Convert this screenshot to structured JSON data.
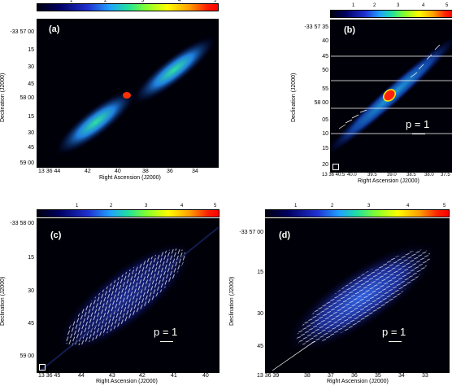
{
  "colorbar_ticks": [
    "1",
    "2",
    "3",
    "4",
    "5"
  ],
  "ylabel": "Declination (J2000)",
  "xlabel": "Right Ascension (J2000)",
  "panels": {
    "a": {
      "label": "(a)",
      "yticks": [
        "-33 57 00",
        "15",
        "30",
        "45",
        "58 00",
        "15",
        "30",
        "45",
        "59 00"
      ],
      "xticks": [
        "13 36 44",
        "42",
        "40",
        "38",
        "36",
        "34"
      ]
    },
    "b": {
      "label": "(b)",
      "yticks": [
        "-33 57 35",
        "40",
        "45",
        "50",
        "55",
        "58 00",
        "05",
        "10",
        "15",
        "20"
      ],
      "xticks": [
        "13 36 40.5",
        "40.0",
        "39.5",
        "39.0",
        "38.5",
        "38.0",
        "37.5"
      ],
      "pval": "p = 1"
    },
    "c": {
      "label": "(c)",
      "yticks": [
        "-33 58 00",
        "15",
        "30",
        "45",
        "59 00"
      ],
      "xticks": [
        "13 36 45",
        "44",
        "43",
        "42",
        "41",
        "40"
      ],
      "pval": "p = 1"
    },
    "d": {
      "label": "(d)",
      "yticks": [
        "-33 57 00",
        "15",
        "30",
        "45"
      ],
      "xticks": [
        "13 36 39",
        "38",
        "37",
        "36",
        "35",
        "34",
        "33"
      ],
      "pval": "p = 1"
    }
  }
}
